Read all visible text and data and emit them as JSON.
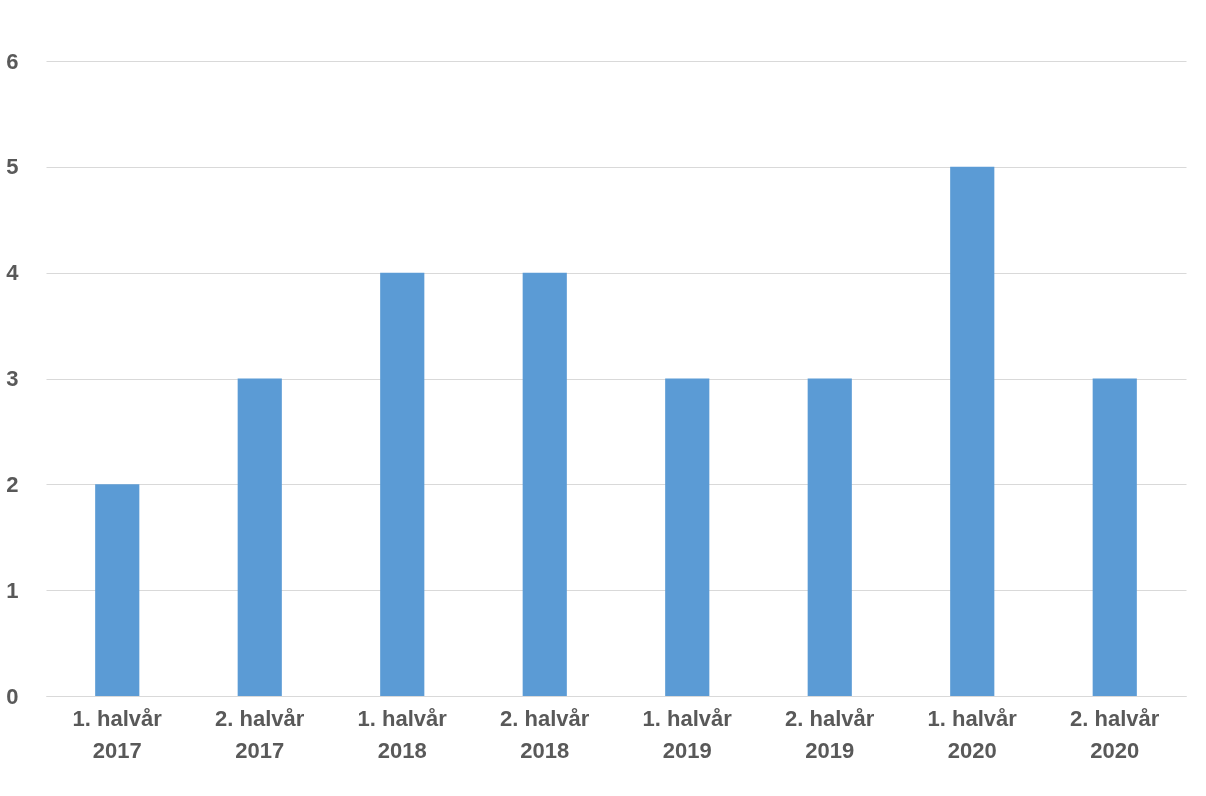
{
  "chart_data": {
    "type": "bar",
    "categories": [
      "1. halvår 2017",
      "2. halvår 2017",
      "1. halvår 2018",
      "2. halvår 2018",
      "1. halvår 2019",
      "2. halvår 2019",
      "1. halvår 2020",
      "2. halvår 2020"
    ],
    "values": [
      2,
      3,
      4,
      4,
      3,
      3,
      5,
      3
    ],
    "color": "#5b9bd5",
    "ylim": [
      0,
      6
    ],
    "yticks": [
      0,
      1,
      2,
      3,
      4,
      5,
      6
    ],
    "grid": "y"
  }
}
